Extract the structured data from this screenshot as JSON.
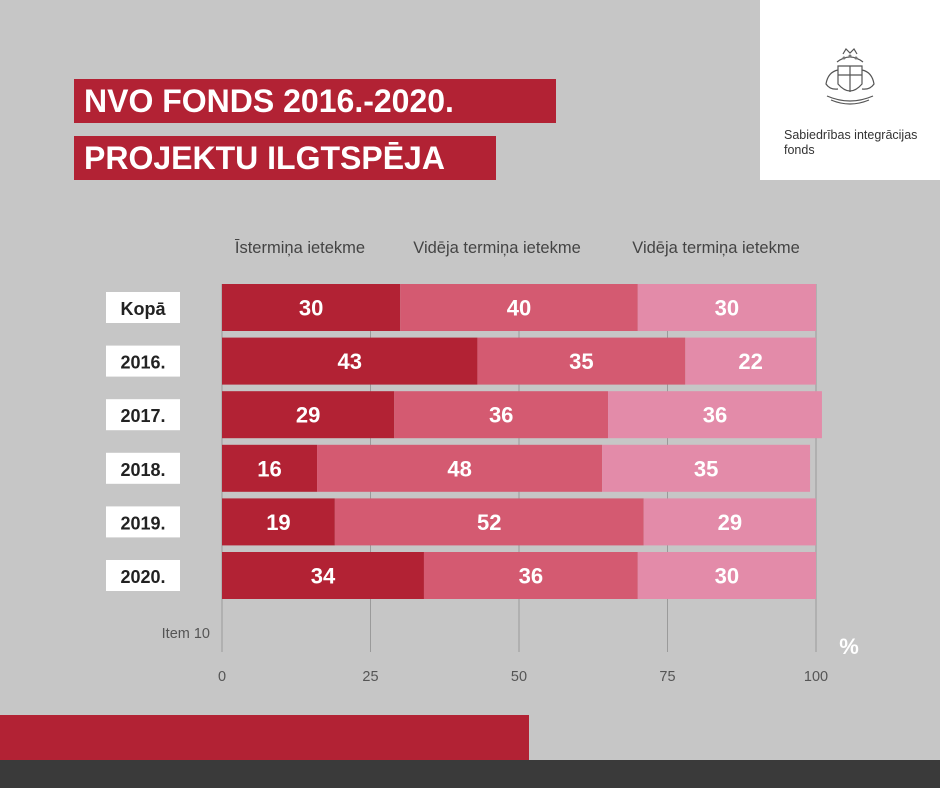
{
  "title": {
    "line1": "NVO FONDS 2016.-2020.",
    "line2": "PROJEKTU ILGTSPĒJA"
  },
  "logo": {
    "text_line1": "Sabiedrības integrācijas",
    "text_line2": "fonds",
    "icon": "latvian-coat-of-arms-icon"
  },
  "colors": {
    "background": "#c6c6c6",
    "accent_red": "#b22234",
    "series": [
      "#b22234",
      "#d45a71",
      "#e38ba9"
    ],
    "footer_dark": "#3a3a3a"
  },
  "chart_data": {
    "type": "bar",
    "orientation": "horizontal",
    "stacked": true,
    "categories": [
      "Kopā",
      "2016.",
      "2017.",
      "2018.",
      "2019.",
      "2020."
    ],
    "extra_category_label": "Item 10",
    "series": [
      {
        "name": "Īstermiņa ietekme",
        "values": [
          30,
          43,
          29,
          16,
          19,
          34
        ]
      },
      {
        "name": "Vidēja termiņa ietekme",
        "values": [
          40,
          35,
          36,
          48,
          52,
          36
        ]
      },
      {
        "name": "Vidēja termiņa ietekme",
        "values": [
          30,
          22,
          36,
          35,
          29,
          30
        ]
      }
    ],
    "xlim": [
      0,
      100
    ],
    "xticks": [
      0,
      25,
      50,
      75,
      100
    ],
    "xticklabels": [
      "0",
      "25",
      "50",
      "75",
      "100"
    ],
    "unit": "%",
    "legend_position": "top",
    "grid": true
  }
}
